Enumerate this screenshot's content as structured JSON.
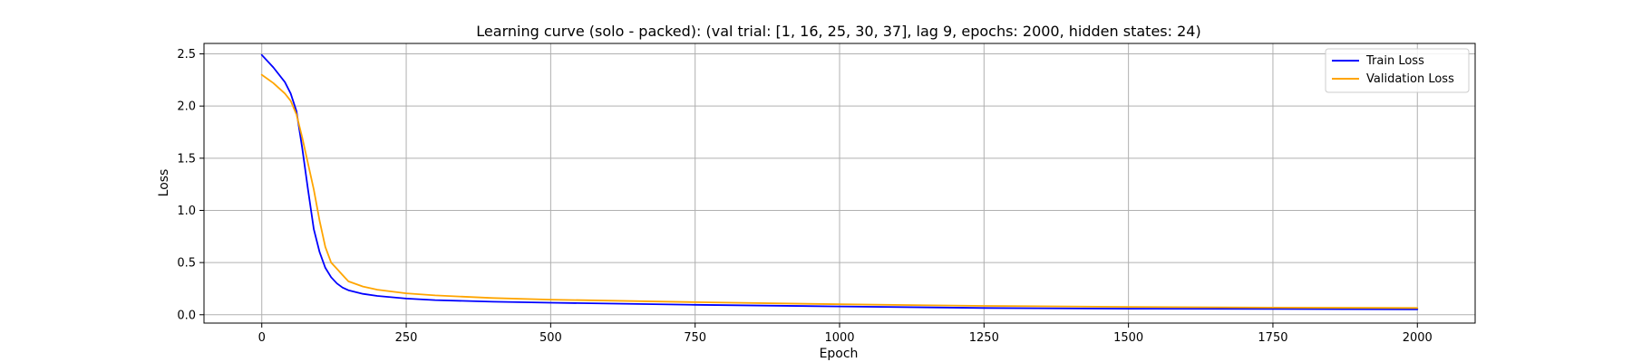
{
  "chart_data": {
    "type": "line",
    "title": "Learning curve (solo - packed): (val trial: [1, 16, 25, 30, 37], lag 9, epochs: 2000, hidden states: 24)",
    "xlabel": "Epoch",
    "ylabel": "Loss",
    "xlim": [
      -100,
      2100
    ],
    "ylim": [
      -0.08,
      2.6
    ],
    "xticks": [
      0,
      250,
      500,
      750,
      1000,
      1250,
      1500,
      1750,
      2000
    ],
    "xtick_labels": [
      "0",
      "250",
      "500",
      "750",
      "1000",
      "1250",
      "1500",
      "1750",
      "2000"
    ],
    "yticks": [
      0.0,
      0.5,
      1.0,
      1.5,
      2.0,
      2.5
    ],
    "ytick_labels": [
      "0.0",
      "0.5",
      "1.0",
      "1.5",
      "2.0",
      "2.5"
    ],
    "grid": true,
    "legend_position": "top-right",
    "series": [
      {
        "name": "Train Loss",
        "color": "#0000ff",
        "x": [
          0,
          20,
          40,
          50,
          60,
          70,
          80,
          90,
          100,
          110,
          120,
          130,
          140,
          150,
          175,
          200,
          250,
          300,
          400,
          500,
          750,
          1000,
          1250,
          1500,
          1750,
          2000
        ],
        "y": [
          2.49,
          2.37,
          2.23,
          2.12,
          1.95,
          1.6,
          1.2,
          0.82,
          0.6,
          0.45,
          0.36,
          0.3,
          0.26,
          0.235,
          0.2,
          0.18,
          0.155,
          0.14,
          0.125,
          0.115,
          0.095,
          0.08,
          0.065,
          0.058,
          0.055,
          0.052
        ]
      },
      {
        "name": "Validation Loss",
        "color": "#ffa500",
        "x": [
          0,
          20,
          40,
          50,
          60,
          70,
          80,
          90,
          100,
          110,
          120,
          130,
          140,
          150,
          175,
          200,
          250,
          300,
          400,
          500,
          750,
          1000,
          1250,
          1500,
          1750,
          2000
        ],
        "y": [
          2.3,
          2.22,
          2.12,
          2.05,
          1.92,
          1.7,
          1.45,
          1.2,
          0.9,
          0.65,
          0.5,
          0.44,
          0.38,
          0.32,
          0.27,
          0.24,
          0.205,
          0.185,
          0.16,
          0.145,
          0.12,
          0.1,
          0.085,
          0.075,
          0.068,
          0.065
        ]
      }
    ]
  }
}
